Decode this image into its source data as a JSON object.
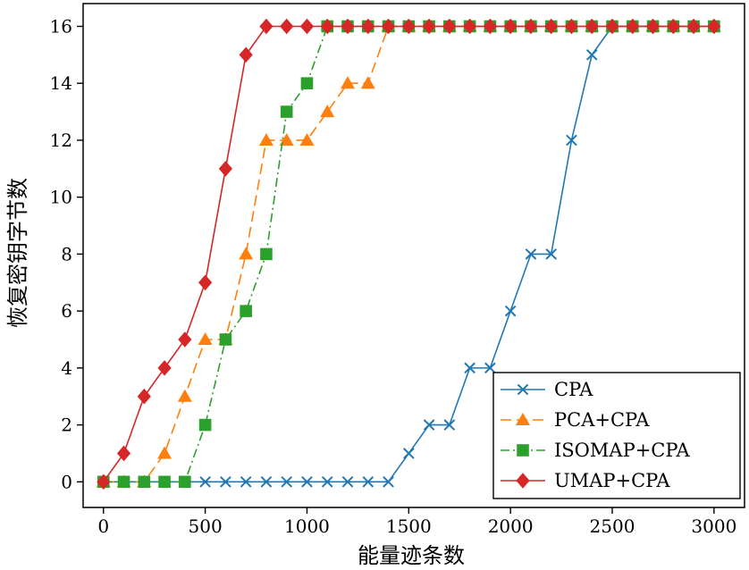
{
  "chart_data": {
    "type": "line",
    "title": "",
    "xlabel": "能量迹条数",
    "ylabel": "恢复密钥字节数",
    "xlim": [
      -100,
      3150
    ],
    "ylim": [
      -0.9,
      16.8
    ],
    "x": [
      0,
      100,
      200,
      300,
      400,
      500,
      600,
      700,
      800,
      900,
      1000,
      1100,
      1200,
      1300,
      1400,
      1500,
      1600,
      1700,
      1800,
      1900,
      2000,
      2100,
      2200,
      2300,
      2400,
      2500,
      2600,
      2700,
      2800,
      2900,
      3000
    ],
    "xticks": [
      0,
      500,
      1000,
      1500,
      2000,
      2500,
      3000
    ],
    "yticks": [
      0,
      2,
      4,
      6,
      8,
      10,
      12,
      14,
      16
    ],
    "grid": false,
    "legend_position": "bottom-right",
    "series": [
      {
        "name": "CPA",
        "color": "#1f77b4",
        "marker": "x",
        "dash": "",
        "values": [
          0,
          0,
          0,
          0,
          0,
          0,
          0,
          0,
          0,
          0,
          0,
          0,
          0,
          0,
          0,
          1,
          2,
          2,
          4,
          4,
          6,
          8,
          8,
          12,
          15,
          16,
          16,
          16,
          16,
          16,
          16
        ]
      },
      {
        "name": "PCA+CPA",
        "color": "#ff7f0e",
        "marker": "triangle",
        "dash": "12,6",
        "values": [
          0,
          0,
          0,
          1,
          3,
          5,
          5,
          8,
          12,
          12,
          12,
          13,
          14,
          14,
          16,
          16,
          16,
          16,
          16,
          16,
          16,
          16,
          16,
          16,
          16,
          16,
          16,
          16,
          16,
          16,
          16
        ]
      },
      {
        "name": "ISOMAP+CPA",
        "color": "#2ca02c",
        "marker": "square",
        "dash": "10,4,2,4",
        "values": [
          0,
          0,
          0,
          0,
          0,
          2,
          5,
          6,
          8,
          13,
          14,
          16,
          16,
          16,
          16,
          16,
          16,
          16,
          16,
          16,
          16,
          16,
          16,
          16,
          16,
          16,
          16,
          16,
          16,
          16,
          16
        ]
      },
      {
        "name": "UMAP+CPA",
        "color": "#d62728",
        "marker": "diamond",
        "dash": "",
        "values": [
          0,
          1,
          3,
          4,
          5,
          7,
          11,
          15,
          16,
          16,
          16,
          16,
          16,
          16,
          16,
          16,
          16,
          16,
          16,
          16,
          16,
          16,
          16,
          16,
          16,
          16,
          16,
          16,
          16,
          16,
          16
        ]
      }
    ]
  }
}
